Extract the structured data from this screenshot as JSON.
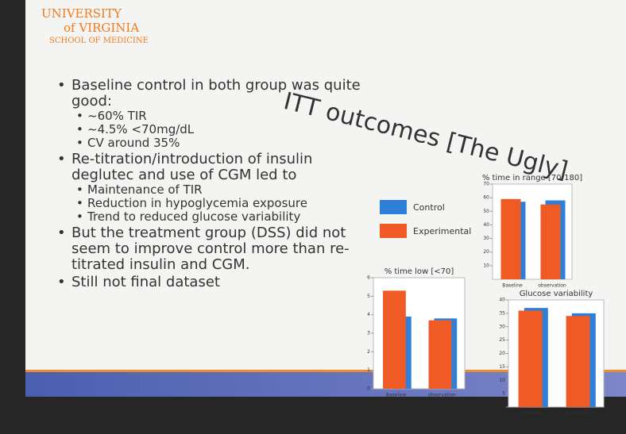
{
  "logo": {
    "line1": "UNIVERSITY",
    "line2": "of VIRGINIA",
    "line3": "SCHOOL OF MEDICINE"
  },
  "title": "ITT outcomes [The Ugly]",
  "bullets": [
    {
      "text": "Baseline control in both group was quite good:",
      "sub": [
        "~60% TIR",
        "~4.5% <70mg/dL",
        "CV around 35%"
      ]
    },
    {
      "text": "Re-titration/introduction of insulin deglutec and use of CGM led to",
      "sub": [
        "Maintenance of TIR",
        "Reduction in hypoglycemia exposure",
        "Trend to reduced glucose variability"
      ]
    },
    {
      "text": "But the treatment group (DSS) did not seem to improve control more than re-titrated insulin and CGM.",
      "sub": []
    },
    {
      "text": "Still not final dataset",
      "sub": []
    }
  ],
  "legend": [
    {
      "name": "Control",
      "color": "#2e7fd8"
    },
    {
      "name": "Experimental",
      "color": "#f05a24"
    }
  ],
  "charts": [
    {
      "type": "bar",
      "title": "% time in range [70-180]",
      "categories": [
        "Baseline",
        "observation"
      ],
      "series": [
        {
          "values": [
            57,
            58
          ]
        },
        {
          "values": [
            59,
            55
          ]
        }
      ],
      "ylim": [
        0,
        70
      ],
      "yticks": [
        10,
        20,
        30,
        40,
        50,
        60,
        70
      ]
    },
    {
      "type": "bar",
      "title": "% time low [<70]",
      "categories": [
        "Baseline",
        "observation"
      ],
      "series": [
        {
          "values": [
            3.9,
            3.8
          ]
        },
        {
          "values": [
            5.3,
            3.7
          ]
        }
      ],
      "ylim": [
        0,
        6
      ],
      "yticks": [
        0,
        1,
        2,
        3,
        4,
        5,
        6
      ]
    },
    {
      "type": "bar",
      "title": "Glucose variability",
      "categories": [
        "Baseline",
        "observation"
      ],
      "series": [
        {
          "values": [
            37,
            35
          ]
        },
        {
          "values": [
            36,
            34
          ]
        }
      ],
      "ylim": [
        0,
        40
      ],
      "yticks": [
        0,
        5,
        10,
        15,
        20,
        25,
        30,
        35,
        40
      ]
    }
  ]
}
